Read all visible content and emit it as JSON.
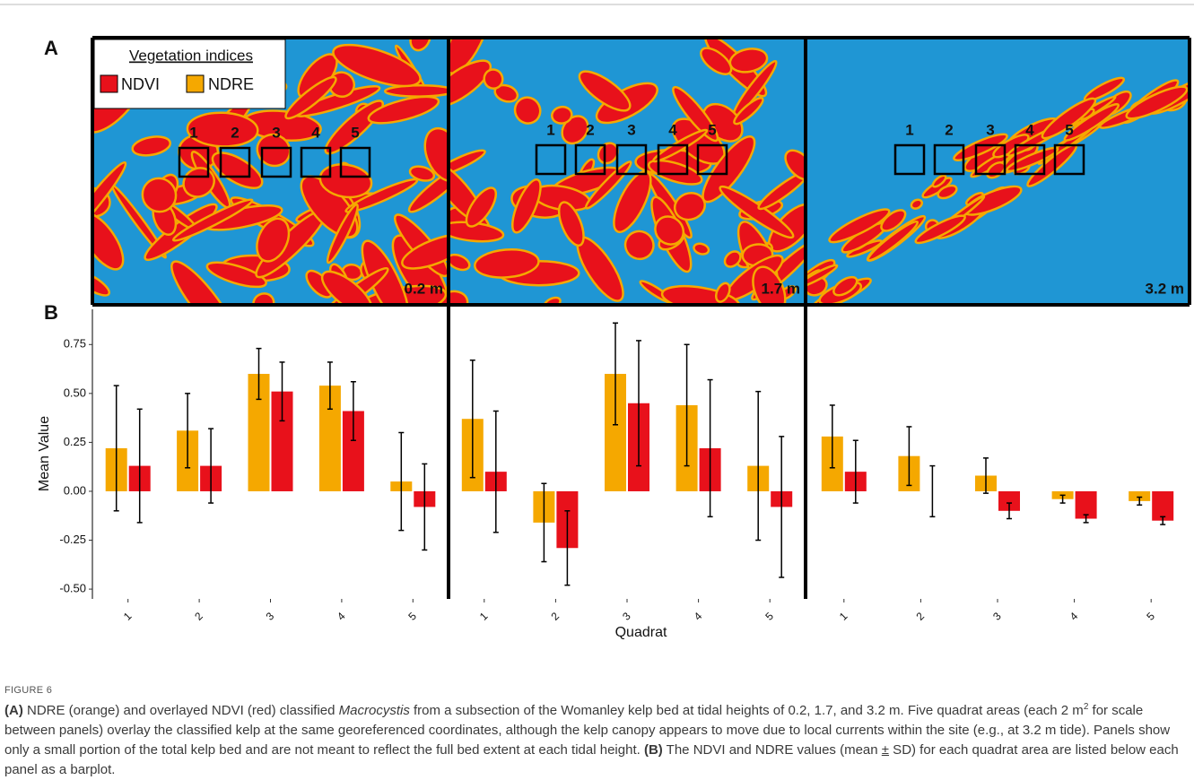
{
  "panel_labels": [
    "A",
    "B"
  ],
  "maps": {
    "legend_title": "Vegetation indices",
    "water_color": "#1f96d4",
    "quadrat_labels": [
      "1",
      "2",
      "3",
      "4",
      "5"
    ],
    "tide_labels": [
      "0.2 m",
      "1.7 m",
      "3.2 m"
    ]
  },
  "chart_data": [
    {
      "type": "bar",
      "categories": [
        "1",
        "2",
        "3",
        "4",
        "5"
      ],
      "series": [
        {
          "name": "NDRE",
          "color": "#f5a800",
          "values": [
            0.22,
            0.31,
            0.6,
            0.54,
            0.05
          ],
          "errors": [
            0.32,
            0.19,
            0.13,
            0.12,
            0.25
          ]
        },
        {
          "name": "NDVI",
          "color": "#e8111b",
          "values": [
            0.13,
            0.13,
            0.51,
            0.41,
            -0.08
          ],
          "errors": [
            0.29,
            0.19,
            0.15,
            0.15,
            0.22
          ]
        }
      ],
      "ylim": [
        -0.55,
        0.93
      ],
      "yticks": [
        {
          "value": -0.5,
          "label": "-0.50"
        },
        {
          "value": -0.25,
          "label": "-0.25"
        },
        {
          "value": 0,
          "label": "0.00"
        },
        {
          "value": 0.25,
          "label": "0.25"
        },
        {
          "value": 0.5,
          "label": "0.50"
        },
        {
          "value": 0.75,
          "label": "0.75"
        }
      ],
      "y_label": "Mean Value"
    },
    {
      "type": "bar",
      "categories": [
        "1",
        "2",
        "3",
        "4",
        "5"
      ],
      "series": [
        {
          "color": "#f5a800",
          "values": [
            0.37,
            -0.16,
            0.6,
            0.44,
            0.13
          ],
          "errors": [
            0.3,
            0.2,
            0.26,
            0.31,
            0.38
          ]
        },
        {
          "color": "#e8111b",
          "values": [
            0.1,
            -0.29,
            0.45,
            0.22,
            -0.08
          ],
          "errors": [
            0.31,
            0.19,
            0.32,
            0.35,
            0.36
          ]
        }
      ],
      "ylim": [
        -0.55,
        0.93
      ],
      "x_label": "Quadrat"
    },
    {
      "type": "bar",
      "categories": [
        "1",
        "2",
        "3",
        "4",
        "5"
      ],
      "series": [
        {
          "color": "#f5a800",
          "values": [
            0.28,
            0.18,
            0.08,
            -0.04,
            -0.05
          ],
          "errors": [
            0.16,
            0.15,
            0.09,
            0.02,
            0.02
          ]
        },
        {
          "color": "#e8111b",
          "values": [
            0.1,
            0.0,
            -0.1,
            -0.14,
            -0.15
          ],
          "errors": [
            0.16,
            0.13,
            0.04,
            0.02,
            0.02
          ]
        }
      ],
      "ylim": [
        -0.55,
        0.93
      ]
    }
  ],
  "caption": {
    "label": "FIGURE 6",
    "segments": [
      "(A)",
      " NDRE (orange) and overlayed NDVI (red) classified ",
      "Macrocystis",
      " from a subsection of the Womanley kelp bed at tidal heights of 0.2, 1.7, and 3.2 m. Five quadrat areas (each 2 m",
      "2",
      " for scale between panels) overlay the classified kelp at the same georeferenced coordinates, although the kelp canopy appears to move due to local currents within the site (e.g., at 3.2 m tide). Panels show only a small portion of the total kelp bed and are not meant to reflect the full bed extent at each tidal height. ",
      "(B)",
      " The NDVI and NDRE values (mean ",
      "±",
      " SD) for each quadrat area are listed below each panel as a barplot."
    ]
  }
}
